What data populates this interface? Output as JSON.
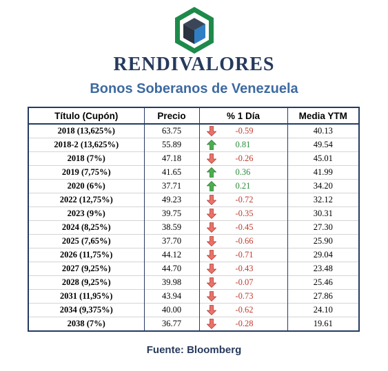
{
  "brand": "RENDIVALORES",
  "subtitle": "Bonos Soberanos de Venezuela",
  "table": {
    "headers": [
      "Título (Cupón)",
      "Precio",
      "% 1 Día",
      "Media YTM"
    ],
    "rows": [
      {
        "title": "2018 (13,625%)",
        "price": "63.75",
        "change": "-0.59",
        "direction": "down",
        "ytm": "40.13"
      },
      {
        "title": "2018-2 (13,625%)",
        "price": "55.89",
        "change": "0.81",
        "direction": "up",
        "ytm": "49.54"
      },
      {
        "title": "2018 (7%)",
        "price": "47.18",
        "change": "-0.26",
        "direction": "down",
        "ytm": "45.01"
      },
      {
        "title": "2019 (7,75%)",
        "price": "41.65",
        "change": "0.36",
        "direction": "up",
        "ytm": "41.99"
      },
      {
        "title": "2020 (6%)",
        "price": "37.71",
        "change": "0.21",
        "direction": "up",
        "ytm": "34.20"
      },
      {
        "title": "2022 (12,75%)",
        "price": "49.23",
        "change": "-0.72",
        "direction": "down",
        "ytm": "32.12"
      },
      {
        "title": "2023 (9%)",
        "price": "39.75",
        "change": "-0.35",
        "direction": "down",
        "ytm": "30.31"
      },
      {
        "title": "2024 (8,25%)",
        "price": "38.59",
        "change": "-0.45",
        "direction": "down",
        "ytm": "27.30"
      },
      {
        "title": "2025 (7,65%)",
        "price": "37.70",
        "change": "-0.66",
        "direction": "down",
        "ytm": "25.90"
      },
      {
        "title": "2026 (11,75%)",
        "price": "44.12",
        "change": "-0.71",
        "direction": "down",
        "ytm": "29.04"
      },
      {
        "title": "2027 (9,25%)",
        "price": "44.70",
        "change": "-0.43",
        "direction": "down",
        "ytm": "23.48"
      },
      {
        "title": "2028 (9,25%)",
        "price": "39.98",
        "change": "-0.07",
        "direction": "down",
        "ytm": "25.46"
      },
      {
        "title": "2031 (11,95%)",
        "price": "43.94",
        "change": "-0.73",
        "direction": "down",
        "ytm": "27.86"
      },
      {
        "title": "2034 (9,375%)",
        "price": "40.00",
        "change": "-0.62",
        "direction": "down",
        "ytm": "24.10"
      },
      {
        "title": "2038 (7%)",
        "price": "36.77",
        "change": "-0.28",
        "direction": "down",
        "ytm": "19.61"
      }
    ]
  },
  "source": "Fuente: Bloomberg",
  "colors": {
    "brand": "#263a5c",
    "subtitle": "#3d6aa1",
    "table_border": "#243a63",
    "negative": "#c0392b",
    "positive": "#2e8b3d",
    "arrow_down": "#e8736a",
    "arrow_up": "#4caf50",
    "logo_green": "#1e8a4a",
    "logo_cube_blue": "#2f7fc4",
    "logo_cube_dark": "#2b3240"
  },
  "icons": {
    "logo": "hexagon-cube-logo",
    "down": "arrow-down-icon",
    "up": "arrow-up-icon"
  }
}
